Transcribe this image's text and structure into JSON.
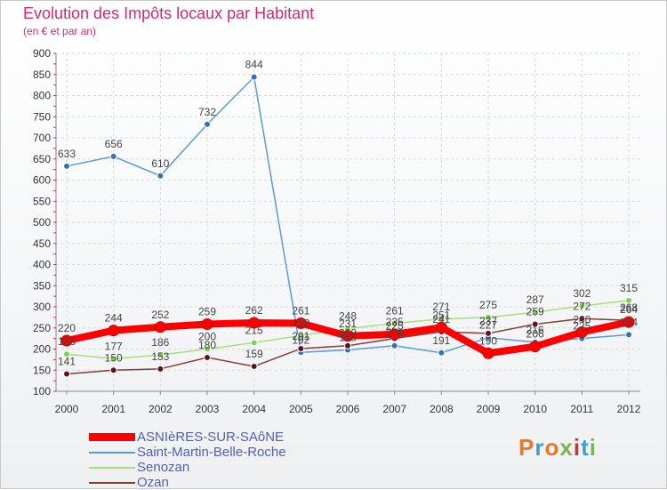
{
  "title": "Evolution des Impôts locaux par Habitant",
  "subtitle": "(en € et par an)",
  "logo": {
    "text": "Proxiti",
    "colors": [
      "#e8782a",
      "#3e9fd6",
      "#e8782a",
      "#7ab648",
      "#d42c3a",
      "#3e9fd6",
      "#7ab648"
    ]
  },
  "chart_data": {
    "type": "line",
    "title": "Evolution des Impôts locaux par Habitant",
    "subtitle": "(en € et par an)",
    "xlabel": "",
    "ylabel": "",
    "ylim": [
      100,
      900
    ],
    "yticks": [
      "100",
      "150",
      "200",
      "250",
      "300",
      "350",
      "400",
      "450",
      "500",
      "550",
      "600",
      "650",
      "700",
      "750",
      "800",
      "850",
      "900"
    ],
    "categories": [
      "2000",
      "2001",
      "2002",
      "2003",
      "2004",
      "2005",
      "2006",
      "2007",
      "2008",
      "2009",
      "2010",
      "2011",
      "2012"
    ],
    "series": [
      {
        "name": "Saint-Martin-Belle-Roche",
        "color": "#5b9bd5",
        "marker": "#2e75b6",
        "values": [
          633,
          656,
          610,
          732,
          844,
          192,
          198,
          208,
          191,
          227,
          216,
          225,
          234
        ],
        "labels": [
          "633",
          "656",
          "610",
          "732",
          "844",
          "192",
          "198",
          "208",
          "191",
          "227",
          "216",
          "225",
          "234"
        ]
      },
      {
        "name": "Senozan",
        "color": "#a8de7c",
        "marker": "#7dd44f",
        "values": [
          188,
          177,
          186,
          200,
          215,
          232,
          248,
          261,
          271,
          275,
          287,
          302,
          315
        ],
        "labels": [
          "188",
          "177",
          "186",
          "200",
          "215",
          "232",
          "248",
          "261",
          "271",
          "275",
          "287",
          "302",
          "315"
        ]
      },
      {
        "name": "Ozan",
        "color": "#8b3a3a",
        "marker": "#5e1515",
        "values": [
          141,
          150,
          153,
          180,
          159,
          201,
          208,
          225,
          241,
          237,
          259,
          272,
          268
        ],
        "labels": [
          "141",
          "150",
          "153",
          "180",
          "159",
          "201",
          "208",
          "225",
          "241",
          "237",
          "259",
          "272",
          "268"
        ]
      },
      {
        "name": "ASNIèRES-SUR-SAôNE",
        "color": "#ff0000",
        "marker": "#ff0000",
        "thick": true,
        "values": [
          220,
          244,
          252,
          259,
          262,
          261,
          231,
          235,
          251,
          190,
          206,
          240,
          264
        ],
        "labels": [
          "220",
          "244",
          "252",
          "259",
          "262",
          "261",
          "231",
          "235",
          "251",
          "190",
          "206",
          "240",
          "264"
        ]
      }
    ],
    "legend": [
      "ASNIèRES-SUR-SAôNE",
      "Saint-Martin-Belle-Roche",
      "Senozan",
      "Ozan"
    ]
  }
}
